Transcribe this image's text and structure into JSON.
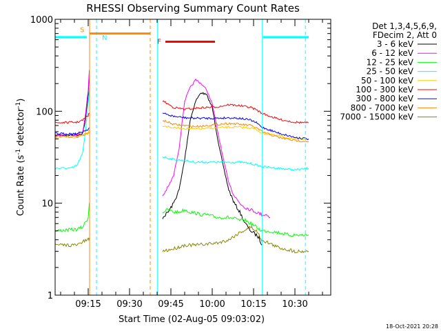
{
  "chart_data": {
    "type": "line",
    "title": "RHESSI Observing Summary Count Rates",
    "xlabel": "Start Time (02-Aug-05 09:03:02)",
    "ylabel_main": "Count Rate (s",
    "ylabel_sup1": "-1",
    "ylabel_mid": " detector",
    "ylabel_sup2": "-1",
    "ylabel_end": ")",
    "footer": "18-Oct-2021 20:28",
    "yscale": "log",
    "ylim": [
      1,
      1000
    ],
    "xlim_minutes": [
      0,
      100
    ],
    "x_ticks": [
      {
        "minutes": 12,
        "label": "09:15"
      },
      {
        "minutes": 27,
        "label": "09:30"
      },
      {
        "minutes": 42,
        "label": "09:45"
      },
      {
        "minutes": 57,
        "label": "10:00"
      },
      {
        "minutes": 72,
        "label": "10:15"
      },
      {
        "minutes": 87,
        "label": "10:30"
      }
    ],
    "y_ticks": [
      {
        "value": 1,
        "label": "1"
      },
      {
        "value": 10,
        "label": "10"
      },
      {
        "value": 100,
        "label": "100"
      },
      {
        "value": 1000,
        "label": "1000"
      }
    ],
    "legend_header": [
      "Det 1,3,4,5,6,9,",
      "FDecim 2, Att 0"
    ],
    "series": [
      {
        "name": "3 - 6 keV",
        "color": "#000000",
        "segments": [
          [
            [
              0,
              55
            ],
            [
              8,
              55
            ],
            [
              10,
              58
            ],
            [
              11,
              80
            ],
            [
              12,
              150
            ],
            [
              12.4,
              260
            ]
          ],
          [
            [
              39,
              7
            ],
            [
              41,
              8
            ],
            [
              43,
              10
            ],
            [
              45,
              14
            ],
            [
              47,
              30
            ],
            [
              49,
              80
            ],
            [
              51,
              130
            ],
            [
              53,
              160
            ],
            [
              55,
              150
            ],
            [
              57,
              110
            ],
            [
              59,
              50
            ],
            [
              61,
              25
            ],
            [
              63,
              14
            ],
            [
              65,
              10
            ],
            [
              67,
              8
            ],
            [
              69,
              6
            ],
            [
              71,
              5
            ],
            [
              73,
              4.5
            ],
            [
              74,
              4.2
            ],
            [
              75,
              3.5
            ]
          ]
        ]
      },
      {
        "name": "6 - 12 keV",
        "color": "#ff00ff",
        "segments": [
          [
            [
              0,
              55
            ],
            [
              8,
              56
            ],
            [
              10,
              60
            ],
            [
              11,
              90
            ],
            [
              12,
              170
            ],
            [
              12.4,
              280
            ]
          ],
          [
            [
              39,
              12
            ],
            [
              41,
              15
            ],
            [
              43,
              20
            ],
            [
              45,
              40
            ],
            [
              47,
              130
            ],
            [
              49,
              180
            ],
            [
              51,
              220
            ],
            [
              53,
              200
            ],
            [
              55,
              170
            ],
            [
              57,
              120
            ],
            [
              59,
              60
            ],
            [
              61,
              30
            ],
            [
              63,
              17
            ],
            [
              65,
              12
            ],
            [
              67,
              10
            ],
            [
              69,
              9
            ],
            [
              71,
              8.5
            ],
            [
              73,
              8
            ],
            [
              75,
              7.5
            ],
            [
              77,
              7.5
            ],
            [
              78,
              7
            ]
          ]
        ]
      },
      {
        "name": "12 - 25 keV",
        "color": "#00ff00",
        "segments": [
          [
            [
              0,
              5
            ],
            [
              8,
              5.2
            ],
            [
              10,
              5.5
            ],
            [
              12,
              7
            ],
            [
              12.4,
              10
            ]
          ],
          [
            [
              39,
              8
            ],
            [
              41,
              8.5
            ],
            [
              43,
              8
            ],
            [
              45,
              8
            ],
            [
              47,
              8.5
            ],
            [
              49,
              8
            ],
            [
              51,
              7.8
            ],
            [
              53,
              7.5
            ],
            [
              55,
              7.5
            ],
            [
              57,
              7.2
            ],
            [
              59,
              7
            ],
            [
              61,
              7
            ],
            [
              63,
              7
            ],
            [
              65,
              6.8
            ],
            [
              67,
              6.5
            ],
            [
              69,
              6.5
            ],
            [
              71,
              6
            ],
            [
              73,
              5.5
            ],
            [
              75,
              5
            ],
            [
              77,
              5
            ],
            [
              81,
              4.8
            ],
            [
              85,
              4.5
            ],
            [
              89,
              4.5
            ],
            [
              92,
              4.5
            ]
          ]
        ]
      },
      {
        "name": "25 - 50 keV",
        "color": "#00ffff",
        "segments": [
          [
            [
              0,
              24
            ],
            [
              6,
              24
            ],
            [
              8,
              26
            ],
            [
              10,
              35
            ],
            [
              11,
              60
            ],
            [
              12,
              120
            ],
            [
              12.4,
              180
            ]
          ],
          [
            [
              39,
              32
            ],
            [
              43,
              30
            ],
            [
              47,
              29
            ],
            [
              51,
              28
            ],
            [
              55,
              28
            ],
            [
              59,
              28
            ],
            [
              63,
              28
            ],
            [
              67,
              28
            ],
            [
              71,
              27
            ],
            [
              73,
              26
            ],
            [
              75,
              25
            ],
            [
              81,
              24
            ],
            [
              87,
              23
            ],
            [
              92,
              24
            ]
          ]
        ]
      },
      {
        "name": "50 - 100 keV",
        "color": "#ffcc00",
        "segments": [
          [
            [
              0,
              52
            ],
            [
              8,
              52
            ],
            [
              10,
              56
            ],
            [
              12,
              60
            ],
            [
              12.4,
              62
            ]
          ],
          [
            [
              39,
              70
            ],
            [
              43,
              66
            ],
            [
              47,
              65
            ],
            [
              51,
              64
            ],
            [
              55,
              65
            ],
            [
              59,
              66
            ],
            [
              63,
              67
            ],
            [
              67,
              67
            ],
            [
              71,
              66
            ],
            [
              73,
              63
            ],
            [
              75,
              58
            ],
            [
              81,
              54
            ],
            [
              87,
              50
            ],
            [
              92,
              50
            ]
          ]
        ]
      },
      {
        "name": "100 - 300 keV",
        "color": "#ff0000",
        "segments": [
          [
            [
              0,
              75
            ],
            [
              8,
              76
            ],
            [
              10,
              80
            ],
            [
              12,
              90
            ],
            [
              12.4,
              95
            ]
          ],
          [
            [
              39,
              130
            ],
            [
              43,
              110
            ],
            [
              47,
              105
            ],
            [
              51,
              108
            ],
            [
              55,
              110
            ],
            [
              59,
              112
            ],
            [
              63,
              118
            ],
            [
              67,
              115
            ],
            [
              71,
              110
            ],
            [
              73,
              104
            ],
            [
              75,
              95
            ],
            [
              81,
              82
            ],
            [
              87,
              76
            ],
            [
              92,
              75
            ]
          ]
        ]
      },
      {
        "name": "300 - 800 keV",
        "color": "#0000ff",
        "segments": [
          [
            [
              0,
              57
            ],
            [
              8,
              57
            ],
            [
              10,
              60
            ],
            [
              12,
              64
            ],
            [
              12.4,
              66
            ]
          ],
          [
            [
              39,
              95
            ],
            [
              43,
              88
            ],
            [
              47,
              85
            ],
            [
              51,
              84
            ],
            [
              55,
              84
            ],
            [
              59,
              84
            ],
            [
              63,
              85
            ],
            [
              67,
              84
            ],
            [
              71,
              80
            ],
            [
              73,
              75
            ],
            [
              75,
              67
            ],
            [
              81,
              58
            ],
            [
              87,
              52
            ],
            [
              92,
              50
            ]
          ]
        ]
      },
      {
        "name": "800 - 7000 keV",
        "color": "#ff8800",
        "segments": [
          [
            [
              0,
              53
            ],
            [
              8,
              53
            ],
            [
              10,
              55
            ],
            [
              12,
              57
            ],
            [
              12.4,
              58
            ]
          ],
          [
            [
              39,
              80
            ],
            [
              43,
              72
            ],
            [
              47,
              70
            ],
            [
              51,
              68
            ],
            [
              55,
              70
            ],
            [
              59,
              72
            ],
            [
              63,
              74
            ],
            [
              67,
              72
            ],
            [
              71,
              70
            ],
            [
              73,
              66
            ],
            [
              75,
              60
            ],
            [
              81,
              52
            ],
            [
              87,
              48
            ],
            [
              92,
              47
            ]
          ]
        ]
      },
      {
        "name": "7000 - 15000 keV",
        "color": "#888800",
        "segments": [
          [
            [
              0,
              3.5
            ],
            [
              8,
              3.5
            ],
            [
              10,
              3.8
            ],
            [
              12,
              4
            ],
            [
              12.4,
              4.2
            ]
          ],
          [
            [
              39,
              3
            ],
            [
              43,
              3.2
            ],
            [
              47,
              3.5
            ],
            [
              51,
              3.5
            ],
            [
              55,
              3.6
            ],
            [
              59,
              3.7
            ],
            [
              63,
              4
            ],
            [
              67,
              4.8
            ],
            [
              71,
              5.5
            ],
            [
              73,
              5
            ],
            [
              75,
              4
            ],
            [
              81,
              3.3
            ],
            [
              87,
              3
            ],
            [
              92,
              3
            ]
          ]
        ]
      }
    ],
    "annotations": {
      "saa": {
        "label": "S",
        "color": "#ff8800",
        "x_start": 12.5,
        "x_end": 34.5,
        "level": 700
      },
      "night": {
        "label": "N",
        "color": "#00ffff",
        "bars": [
          [
            0,
            11.5
          ],
          [
            75.5,
            92
          ]
        ],
        "level": 640,
        "label_at": 15.5
      },
      "flare": {
        "label": "F",
        "color": "#ff0000",
        "x_start": 40,
        "x_end": 58,
        "level": 570
      },
      "vlines": [
        {
          "x": 12.5,
          "color": "#ff8800",
          "style": "solid"
        },
        {
          "x": 15,
          "color": "#00ffff",
          "style": "dashed"
        },
        {
          "x": 34.5,
          "color": "#ff8800",
          "style": "dashed"
        },
        {
          "x": 37.2,
          "color": "#00ffff",
          "style": "solid"
        },
        {
          "x": 75.2,
          "color": "#00ffff",
          "style": "solid"
        },
        {
          "x": 90.8,
          "color": "#00ffff",
          "style": "dashed"
        }
      ]
    }
  }
}
